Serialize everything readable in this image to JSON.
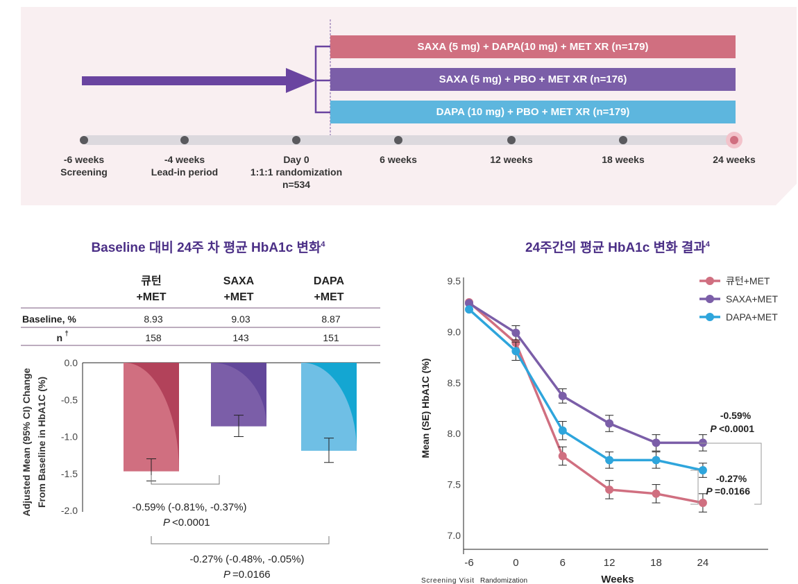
{
  "design": {
    "arms": [
      {
        "label": "SAXA (5 mg) + DAPA(10 mg) + MET XR (n=179)",
        "color": "#d06f80"
      },
      {
        "label": "SAXA (5 mg) + PBO + MET XR (n=176)",
        "color": "#7b5ea8"
      },
      {
        "label": "DAPA (10 mg) + PBO + MET XR (n=179)",
        "color": "#5db6de"
      }
    ],
    "arrow_color": "#6a44a0",
    "timeline": [
      {
        "line1": "-6 weeks",
        "line2": "Screening",
        "line3": ""
      },
      {
        "line1": "-4 weeks",
        "line2": "Lead-in period",
        "line3": ""
      },
      {
        "line1": "Day 0",
        "line2": "1:1:1 randomization",
        "line3": "n=534"
      },
      {
        "line1": "6 weeks",
        "line2": "",
        "line3": ""
      },
      {
        "line1": "12 weeks",
        "line2": "",
        "line3": ""
      },
      {
        "line1": "18 weeks",
        "line2": "",
        "line3": ""
      },
      {
        "line1": "24 weeks",
        "line2": "",
        "line3": ""
      }
    ]
  },
  "left_title": "Baseline 대비 24주 차 평균 HbA1c 변화",
  "left_title_sup": "4",
  "right_title": "24주간의 평균 HbA1c 변화 결과",
  "right_title_sup": "4",
  "table": {
    "columns": [
      {
        "l1": "큐턴",
        "l2": "+MET"
      },
      {
        "l1": "SAXA",
        "l2": "+MET"
      },
      {
        "l1": "DAPA",
        "l2": "+MET"
      }
    ],
    "rows": [
      {
        "label": "Baseline, %",
        "values": [
          "8.93",
          "9.03",
          "8.87"
        ]
      },
      {
        "label": "n",
        "sup": "†",
        "values": [
          "158",
          "143",
          "151"
        ]
      }
    ]
  },
  "chart_data": [
    {
      "type": "bar",
      "categories": [
        "큐턴+MET",
        "SAXA+MET",
        "DAPA+MET"
      ],
      "values": [
        -1.47,
        -0.86,
        -1.19
      ],
      "ci_low": [
        -1.6,
        -1.0,
        -1.35
      ],
      "ci_high": [
        -1.3,
        -0.71,
        -1.02
      ],
      "colors": [
        "#d06f80",
        "#7b5ea8",
        "#6fbfe5"
      ],
      "dark_colors": [
        "#b2425a",
        "#62479a",
        "#14a6d2"
      ],
      "ylabel": "Adjusted Mean (95% CI) Change From Baseline in HbA1C (%)",
      "ylim": [
        -2.0,
        0.0
      ],
      "yticks": [
        "0.0",
        "-0.5",
        "-1.0",
        "-1.5",
        "-2.0"
      ],
      "annotations": [
        {
          "text": "-0.59% (-0.81%, -0.37%)",
          "p_prefix": "P",
          "p_text": "<0.0001"
        },
        {
          "text": "-0.27% (-0.48%, -0.05%)",
          "p_prefix": "P",
          "p_text": "=0.0166"
        }
      ]
    },
    {
      "type": "line",
      "x": [
        -6,
        0,
        6,
        12,
        18,
        24
      ],
      "xticks": [
        "-6",
        "0",
        "6",
        "12",
        "18",
        "24"
      ],
      "xsub": [
        "Screening Visit",
        "Randomization"
      ],
      "xlabel": "Weeks",
      "ylabel": "Mean (SE) HbA1C (%)",
      "ylim": [
        7.0,
        9.5
      ],
      "yticks": [
        "9.5",
        "9.0",
        "8.5",
        "8.0",
        "7.5",
        "7.0"
      ],
      "legend": "top-right",
      "series": [
        {
          "name": "큐턴+MET",
          "color": "#d06f80",
          "values": [
            9.29,
            8.89,
            7.78,
            7.45,
            7.41,
            7.32
          ],
          "se": [
            0,
            0,
            0.09,
            0.09,
            0.09,
            0.09
          ]
        },
        {
          "name": "SAXA+MET",
          "color": "#7b5ea8",
          "values": [
            9.28,
            8.99,
            8.37,
            8.1,
            7.91,
            7.91
          ],
          "se": [
            0,
            0.07,
            0.07,
            0.08,
            0.08,
            0.08
          ]
        },
        {
          "name": "DAPA+MET",
          "color": "#2ea5dc",
          "values": [
            9.22,
            8.81,
            8.03,
            7.74,
            7.74,
            7.64
          ],
          "se": [
            0,
            0.09,
            0.09,
            0.08,
            0.08,
            0.07
          ]
        }
      ],
      "annotations": [
        {
          "text": "-0.59%",
          "p_prefix": "P",
          "p_text": "<0.0001"
        },
        {
          "text": "-0.27%",
          "p_prefix": "P",
          "p_text": "=0.0166"
        }
      ]
    }
  ]
}
